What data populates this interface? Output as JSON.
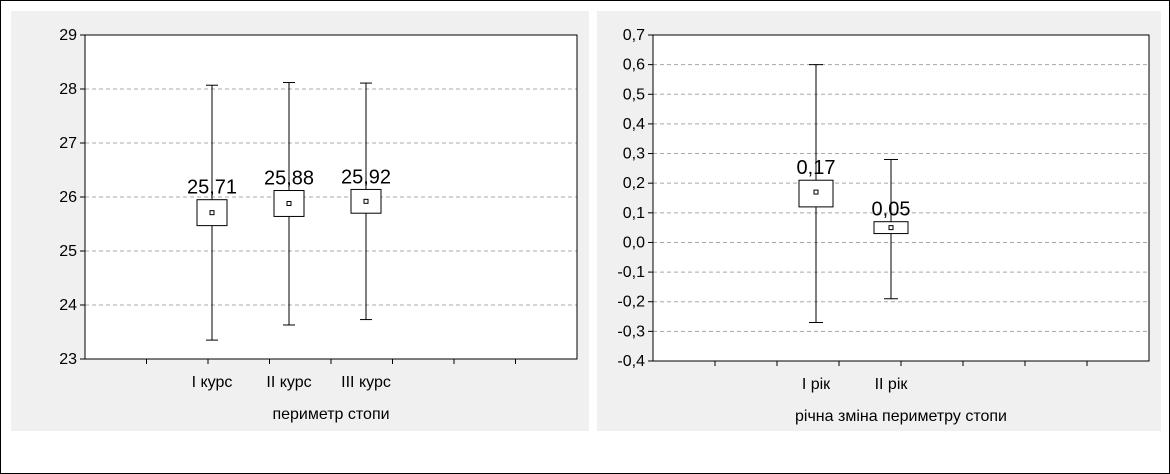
{
  "chart_data": [
    {
      "type": "box",
      "xlabel": "периметр стопи",
      "ylabel": "",
      "ylim": [
        23,
        29
      ],
      "yticks": [
        "23",
        "24",
        "25",
        "26",
        "27",
        "28",
        "29"
      ],
      "grid": true,
      "categories": [
        "І курс",
        "ІІ курс",
        "ІІІ курс"
      ],
      "mean": [
        25.71,
        25.88,
        25.92
      ],
      "mean_labels": [
        "25,71",
        "25,88",
        "25,92"
      ],
      "box_low": [
        25.47,
        25.64,
        25.7
      ],
      "box_high": [
        25.95,
        26.12,
        26.14
      ],
      "whisker_low": [
        23.35,
        23.63,
        23.73
      ],
      "whisker_high": [
        28.07,
        28.12,
        28.11
      ]
    },
    {
      "type": "box",
      "xlabel": "річна зміна периметру стопи",
      "ylabel": "",
      "ylim": [
        -0.4,
        0.7
      ],
      "yticks": [
        "-0,4",
        "-0,3",
        "-0,2",
        "-0,1",
        "0,0",
        "0,1",
        "0,2",
        "0,3",
        "0,4",
        "0,5",
        "0,6",
        "0,7"
      ],
      "grid": true,
      "categories": [
        "І рік",
        "ІІ рік"
      ],
      "mean": [
        0.17,
        0.05
      ],
      "mean_labels": [
        "0,17",
        "0,05"
      ],
      "box_low": [
        0.12,
        0.03
      ],
      "box_high": [
        0.21,
        0.07
      ],
      "whisker_low": [
        -0.27,
        -0.19
      ],
      "whisker_high": [
        0.6,
        0.28
      ]
    }
  ]
}
